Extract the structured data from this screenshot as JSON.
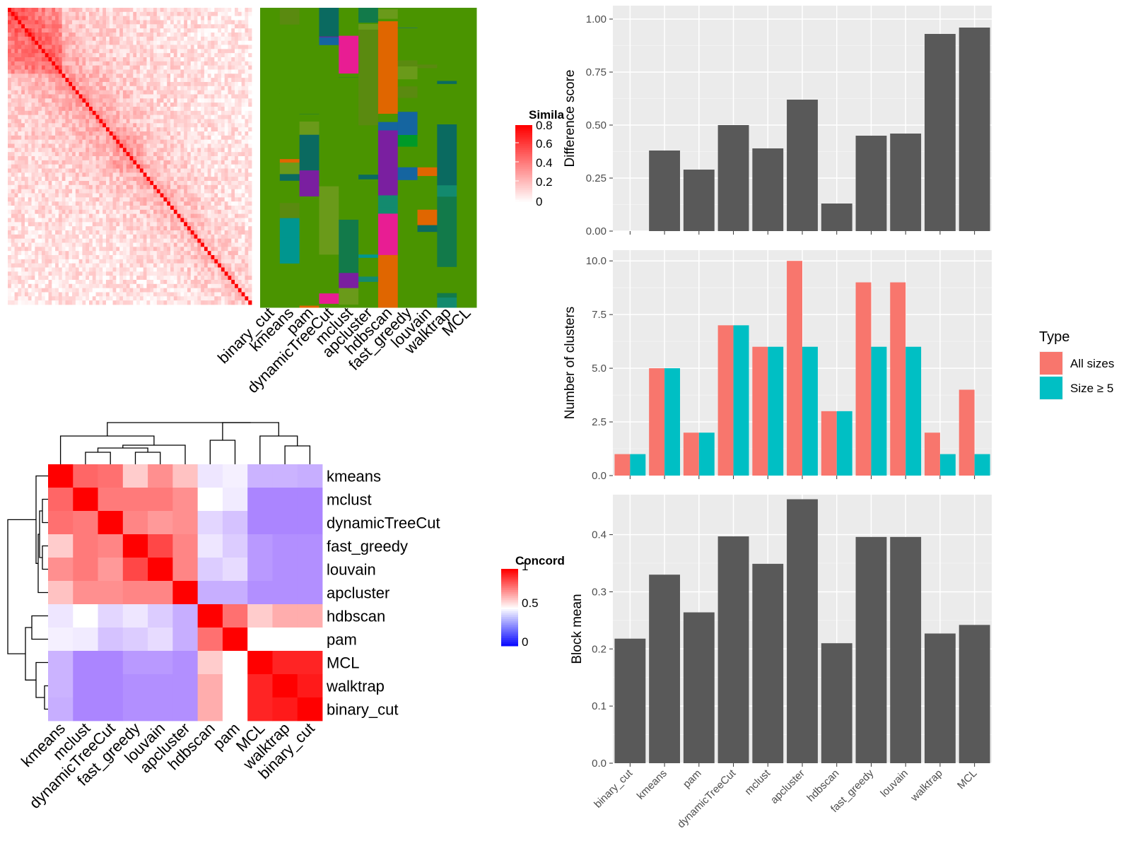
{
  "chart_data": [
    {
      "type": "heatmap",
      "subtype": "similarity-matrix-with-cluster-annotations",
      "legend": {
        "title": "Simila",
        "ticks": [
          "0.8",
          "0.6",
          "0.4",
          "0.2",
          "0"
        ],
        "range": [
          0,
          0.85
        ]
      },
      "annotation_columns": [
        "binary_cut",
        "kmeans",
        "pam",
        "dynamicTreeCut",
        "mclust",
        "apcluster",
        "hdbscan",
        "fast_greedy",
        "louvain",
        "walktrap",
        "MCL"
      ],
      "colors": {
        "high": "#ff0000",
        "low": "#ffffff"
      }
    },
    {
      "type": "heatmap",
      "subtype": "concordance-with-dendrogram",
      "legend": {
        "title": "Concord",
        "ticks": [
          "1",
          "0.5",
          "0"
        ]
      },
      "labels": [
        "kmeans",
        "mclust",
        "dynamicTreeCut",
        "fast_greedy",
        "louvain",
        "apcluster",
        "hdbscan",
        "pam",
        "MCL",
        "walktrap",
        "binary_cut"
      ],
      "values": [
        [
          1.0,
          0.8,
          0.78,
          0.6,
          0.72,
          0.62,
          0.45,
          0.47,
          0.35,
          0.35,
          0.34
        ],
        [
          0.8,
          1.0,
          0.76,
          0.76,
          0.76,
          0.72,
          0.5,
          0.46,
          0.26,
          0.26,
          0.26
        ],
        [
          0.78,
          0.76,
          1.0,
          0.74,
          0.7,
          0.72,
          0.42,
          0.38,
          0.26,
          0.26,
          0.26
        ],
        [
          0.6,
          0.76,
          0.74,
          1.0,
          0.86,
          0.74,
          0.45,
          0.4,
          0.3,
          0.28,
          0.28
        ],
        [
          0.72,
          0.76,
          0.7,
          0.86,
          1.0,
          0.74,
          0.4,
          0.43,
          0.3,
          0.28,
          0.28
        ],
        [
          0.62,
          0.72,
          0.72,
          0.74,
          0.74,
          1.0,
          0.34,
          0.34,
          0.28,
          0.28,
          0.28
        ],
        [
          0.45,
          0.5,
          0.42,
          0.45,
          0.4,
          0.34,
          1.0,
          0.78,
          0.6,
          0.66,
          0.66
        ],
        [
          0.47,
          0.46,
          0.38,
          0.4,
          0.43,
          0.34,
          0.78,
          1.0,
          0.5,
          0.5,
          0.5
        ],
        [
          0.35,
          0.26,
          0.26,
          0.3,
          0.3,
          0.28,
          0.6,
          0.5,
          1.0,
          0.93,
          0.93
        ],
        [
          0.35,
          0.26,
          0.26,
          0.28,
          0.28,
          0.28,
          0.66,
          0.5,
          0.93,
          1.0,
          0.95
        ],
        [
          0.34,
          0.26,
          0.26,
          0.28,
          0.28,
          0.28,
          0.66,
          0.5,
          0.93,
          0.95,
          1.0
        ]
      ],
      "colors": {
        "high": "#ff0000",
        "mid": "#ffffff",
        "low": "#0000ff"
      }
    },
    {
      "type": "bar",
      "categories": [
        "binary_cut",
        "kmeans",
        "pam",
        "dynamicTreeCut",
        "mclust",
        "apcluster",
        "hdbscan",
        "fast_greedy",
        "louvain",
        "walktrap",
        "MCL"
      ],
      "values": [
        0.0,
        0.38,
        0.29,
        0.5,
        0.39,
        0.62,
        0.13,
        0.45,
        0.46,
        0.93,
        0.96
      ],
      "ylabel": "Difference score",
      "ylim": [
        0,
        1
      ],
      "yticks": [
        "0.00",
        "0.25",
        "0.50",
        "0.75",
        "1.00"
      ],
      "bar_color": "#595959"
    },
    {
      "type": "bar",
      "categories": [
        "binary_cut",
        "kmeans",
        "pam",
        "dynamicTreeCut",
        "mclust",
        "apcluster",
        "hdbscan",
        "fast_greedy",
        "louvain",
        "walktrap",
        "MCL"
      ],
      "series": [
        {
          "name": "All sizes",
          "values": [
            1,
            5,
            2,
            7,
            6,
            10,
            3,
            9,
            9,
            2,
            4
          ],
          "color": "#f8766d"
        },
        {
          "name": "Size ≥ 5",
          "values": [
            1,
            5,
            2,
            7,
            6,
            6,
            3,
            6,
            6,
            1,
            1
          ],
          "color": "#00bfc4"
        }
      ],
      "ylabel": "Number of clusters",
      "ylim": [
        0,
        10.5
      ],
      "yticks": [
        "0.0",
        "2.5",
        "5.0",
        "7.5",
        "10.0"
      ],
      "legend": {
        "title": "Type",
        "position": "right"
      }
    },
    {
      "type": "bar",
      "categories": [
        "binary_cut",
        "kmeans",
        "pam",
        "dynamicTreeCut",
        "mclust",
        "apcluster",
        "hdbscan",
        "fast_greedy",
        "louvain",
        "walktrap",
        "MCL"
      ],
      "values": [
        0.218,
        0.33,
        0.264,
        0.397,
        0.349,
        0.462,
        0.21,
        0.396,
        0.396,
        0.227,
        0.242
      ],
      "ylabel": "Block mean",
      "ylim": [
        0,
        0.47
      ],
      "yticks": [
        "0.0",
        "0.1",
        "0.2",
        "0.3",
        "0.4"
      ],
      "bar_color": "#595959"
    }
  ]
}
